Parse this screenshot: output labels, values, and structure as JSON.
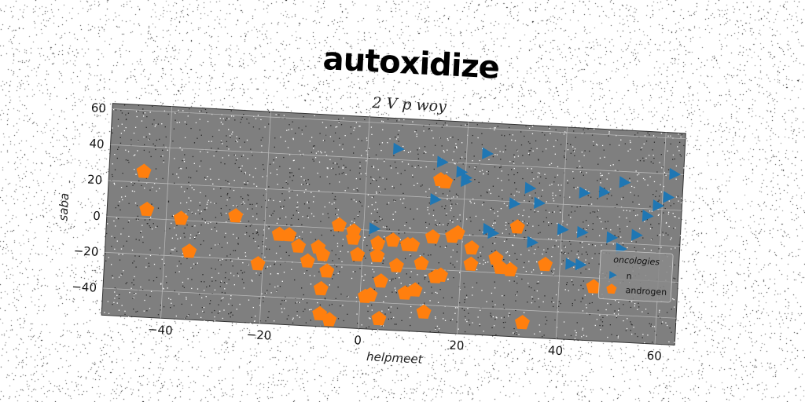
{
  "header": {
    "title": "autoxidize",
    "subtitle": "2 V p woy"
  },
  "colors": {
    "plot_bg": "#7f7f7f",
    "grid": "#b8b8b8",
    "series_n": "#1f77b4",
    "series_androgen": "#ff7f0e"
  },
  "chart_data": {
    "type": "scatter",
    "xlabel": "helpmeet",
    "ylabel": "saba",
    "xlim": [
      -52,
      64
    ],
    "ylim": [
      -55,
      63
    ],
    "xticks": [
      "−40",
      "−20",
      "0",
      "20",
      "40",
      "60"
    ],
    "xtick_values": [
      -40,
      -20,
      0,
      20,
      40,
      60
    ],
    "yticks": [
      "−40",
      "−20",
      "0",
      "20",
      "40",
      "60"
    ],
    "ytick_values": [
      -40,
      -20,
      0,
      20,
      40,
      60
    ],
    "grid": true,
    "legend": {
      "title": "oncologies",
      "placement": "right",
      "entries": [
        "n",
        "androgen"
      ]
    },
    "series": [
      {
        "name": "n",
        "marker": "triangle-right",
        "points": [
          [
            6,
            46
          ],
          [
            15,
            40
          ],
          [
            19,
            35
          ],
          [
            20,
            32
          ],
          [
            24,
            46
          ],
          [
            20,
            30
          ],
          [
            33,
            28
          ],
          [
            44,
            27
          ],
          [
            48,
            28
          ],
          [
            52,
            34
          ],
          [
            62,
            40
          ],
          [
            59,
            22
          ],
          [
            61,
            27
          ],
          [
            57,
            16
          ],
          [
            14,
            19
          ],
          [
            30,
            19
          ],
          [
            35,
            20
          ],
          [
            25,
            4
          ],
          [
            26,
            2
          ],
          [
            40,
            6
          ],
          [
            44,
            5
          ],
          [
            50,
            3
          ],
          [
            55,
            5
          ],
          [
            52,
            -3
          ],
          [
            34,
            -2
          ],
          [
            42,
            -13
          ],
          [
            44,
            -13
          ],
          [
            2,
            1
          ]
        ]
      },
      {
        "name": "androgen",
        "marker": "pentagon",
        "points": [
          [
            -45,
            26
          ],
          [
            -44,
            5
          ],
          [
            -37,
            1
          ],
          [
            -35,
            -17
          ],
          [
            -26,
            4
          ],
          [
            -21,
            -22
          ],
          [
            -17,
            -5
          ],
          [
            -15,
            -5
          ],
          [
            -13,
            -11
          ],
          [
            -11,
            -19
          ],
          [
            -9,
            -11
          ],
          [
            -8,
            -15
          ],
          [
            -7,
            -24
          ],
          [
            -5,
            2
          ],
          [
            -8,
            -34
          ],
          [
            -8,
            -48
          ],
          [
            -6,
            -51
          ],
          [
            -2,
            -1
          ],
          [
            -2,
            -5
          ],
          [
            -1,
            -14
          ],
          [
            1,
            -37
          ],
          [
            2,
            -36
          ],
          [
            3,
            -7
          ],
          [
            3,
            -14
          ],
          [
            4,
            -28
          ],
          [
            4,
            -49
          ],
          [
            6,
            -5
          ],
          [
            7,
            -19
          ],
          [
            9,
            -7
          ],
          [
            9,
            -34
          ],
          [
            10,
            -7
          ],
          [
            11,
            -32
          ],
          [
            12,
            -17
          ],
          [
            13,
            -44
          ],
          [
            14,
            -2
          ],
          [
            15,
            -24
          ],
          [
            15,
            30
          ],
          [
            16,
            -23
          ],
          [
            18,
            -1
          ],
          [
            19,
            1
          ],
          [
            22,
            -7
          ],
          [
            22,
            -16
          ],
          [
            27,
            -12
          ],
          [
            28,
            -17
          ],
          [
            30,
            -18
          ],
          [
            31,
            6
          ],
          [
            37,
            -14
          ],
          [
            33,
            -47
          ],
          [
            47,
            -25
          ],
          [
            16,
            29
          ]
        ]
      }
    ]
  }
}
